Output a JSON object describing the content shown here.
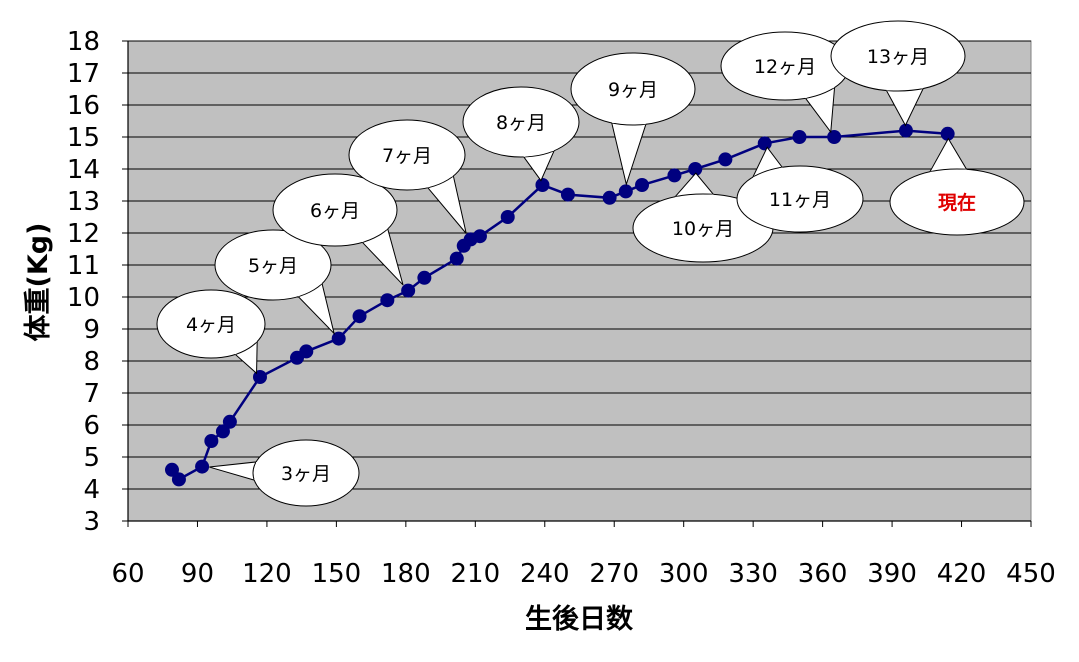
{
  "chart_data": {
    "type": "scatter",
    "title": "",
    "xlabel": "生後日数",
    "ylabel": "体重(Kg)",
    "xlim": [
      60,
      450
    ],
    "ylim": [
      3,
      18
    ],
    "xticks": [
      60,
      90,
      120,
      150,
      180,
      210,
      240,
      270,
      300,
      330,
      360,
      390,
      420,
      450
    ],
    "yticks": [
      3,
      4,
      5,
      6,
      7,
      8,
      9,
      10,
      11,
      12,
      13,
      14,
      15,
      16,
      17,
      18
    ],
    "grid": "horizontal",
    "legend": "none",
    "series": [
      {
        "color": "#00007f",
        "points": [
          [
            79,
            4.6
          ],
          [
            82,
            4.3
          ],
          [
            92,
            4.7
          ],
          [
            96,
            5.5
          ],
          [
            101,
            5.8
          ],
          [
            104,
            6.1
          ],
          [
            117,
            7.5
          ],
          [
            133,
            8.1
          ],
          [
            137,
            8.3
          ],
          [
            151,
            8.7
          ],
          [
            160,
            9.4
          ],
          [
            172,
            9.9
          ],
          [
            181,
            10.2
          ],
          [
            188,
            10.6
          ],
          [
            202,
            11.2
          ],
          [
            205,
            11.6
          ],
          [
            208,
            11.8
          ],
          [
            212,
            11.9
          ],
          [
            224,
            12.5
          ],
          [
            239,
            13.5
          ],
          [
            250,
            13.2
          ],
          [
            268,
            13.1
          ],
          [
            275,
            13.3
          ],
          [
            282,
            13.5
          ],
          [
            296,
            13.8
          ],
          [
            305,
            14.0
          ],
          [
            318,
            14.3
          ],
          [
            335,
            14.8
          ],
          [
            350,
            15.0
          ],
          [
            365,
            15.0
          ],
          [
            396,
            15.2
          ],
          [
            414,
            15.1
          ]
        ]
      }
    ],
    "annotations": [
      {
        "text": "3ヶ月",
        "point": [
          92,
          4.7
        ],
        "style": "normal"
      },
      {
        "text": "4ヶ月",
        "point": [
          117,
          7.5
        ],
        "style": "normal"
      },
      {
        "text": "5ヶ月",
        "point": [
          151,
          8.7
        ],
        "style": "normal"
      },
      {
        "text": "6ヶ月",
        "point": [
          181,
          10.2
        ],
        "style": "normal"
      },
      {
        "text": "7ヶ月",
        "point": [
          208,
          11.8
        ],
        "style": "normal"
      },
      {
        "text": "8ヶ月",
        "point": [
          239,
          13.5
        ],
        "style": "normal"
      },
      {
        "text": "9ヶ月",
        "point": [
          275,
          13.3
        ],
        "style": "normal"
      },
      {
        "text": "10ヶ月",
        "point": [
          305,
          14.0
        ],
        "style": "normal"
      },
      {
        "text": "11ヶ月",
        "point": [
          335,
          14.8
        ],
        "style": "normal"
      },
      {
        "text": "12ヶ月",
        "point": [
          365,
          15.0
        ],
        "style": "normal"
      },
      {
        "text": "13ヶ月",
        "point": [
          396,
          15.2
        ],
        "style": "normal"
      },
      {
        "text": "現在",
        "point": [
          414,
          15.1
        ],
        "style": "current"
      }
    ]
  }
}
